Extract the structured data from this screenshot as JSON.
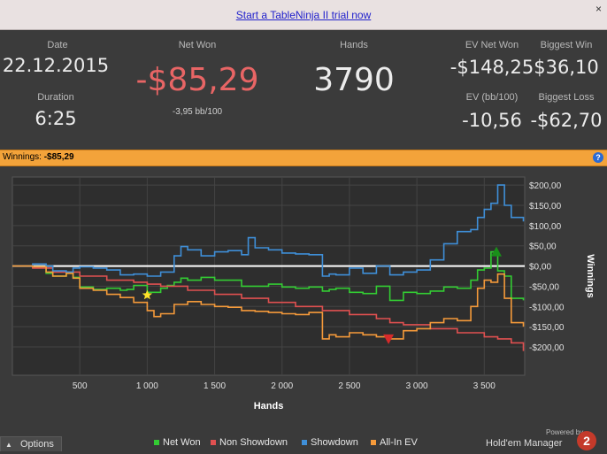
{
  "trial": {
    "link_text": "Start a TableNinja II trial now",
    "close_glyph": "×"
  },
  "stats": {
    "date_label": "Date",
    "date_value": "22.12.2015",
    "duration_label": "Duration",
    "duration_value": "6:25",
    "net_won_label": "Net Won",
    "net_won_value": "-$85,29",
    "net_won_sub": "-3,95 bb/100",
    "hands_label": "Hands",
    "hands_value": "3790",
    "ev_net_won_label": "EV Net Won",
    "ev_net_won_value": "-$148,25",
    "ev_bb_label": "EV (bb/100)",
    "ev_bb_value": "-10,56",
    "biggest_win_label": "Biggest Win",
    "biggest_win_value": "$36,10",
    "biggest_loss_label": "Biggest Loss",
    "biggest_loss_value": "-$62,70"
  },
  "winbar": {
    "label": "Winnings:",
    "value": "-$85,29",
    "help_glyph": "?"
  },
  "colors": {
    "net_won": "#33cc33",
    "non_showdown": "#e05050",
    "showdown": "#3f8fd8",
    "all_in_ev": "#f59a3a",
    "negative": "#e86565"
  },
  "chart_data": {
    "type": "line",
    "xlabel": "Hands",
    "ylabel": "Winnings",
    "xlim": [
      0,
      3800
    ],
    "ylim": [
      -270,
      220
    ],
    "x_ticks": [
      500,
      1000,
      1500,
      2000,
      2500,
      3000,
      3500
    ],
    "x_tick_labels": [
      "500",
      "1 000",
      "1 500",
      "2 000",
      "2 500",
      "3 000",
      "3 500"
    ],
    "y_ticks": [
      200,
      150,
      100,
      50,
      0,
      -50,
      -100,
      -150,
      -200
    ],
    "y_tick_labels": [
      "$200,00",
      "$150,00",
      "$100,00",
      "$50,00",
      "$0,00",
      "-$50,00",
      "-$100,00",
      "-$150,00",
      "-$200,00"
    ],
    "legend_position": "bottom",
    "series": [
      {
        "name": "Net Won",
        "color": "#33cc33",
        "x": [
          0,
          150,
          250,
          300,
          400,
          450,
          500,
          600,
          700,
          800,
          850,
          900,
          1000,
          1100,
          1150,
          1200,
          1250,
          1300,
          1400,
          1500,
          1600,
          1700,
          1800,
          1900,
          2000,
          2100,
          2200,
          2300,
          2350,
          2400,
          2500,
          2600,
          2700,
          2800,
          2900,
          3000,
          3100,
          3200,
          3300,
          3400,
          3450,
          3500,
          3550,
          3600,
          3650,
          3700,
          3790
        ],
        "values": [
          0,
          -2,
          -18,
          -25,
          -18,
          -28,
          -52,
          -58,
          -55,
          -60,
          -58,
          -48,
          -65,
          -55,
          -48,
          -40,
          -30,
          -35,
          -28,
          -35,
          -35,
          -50,
          -50,
          -45,
          -52,
          -55,
          -52,
          -62,
          -58,
          -55,
          -65,
          -68,
          -50,
          -85,
          -65,
          -68,
          -62,
          -52,
          -55,
          -35,
          -10,
          -5,
          35,
          -12,
          -25,
          -80,
          -85
        ]
      },
      {
        "name": "Non Showdown",
        "color": "#e05050",
        "x": [
          0,
          150,
          300,
          500,
          700,
          900,
          1000,
          1100,
          1300,
          1500,
          1700,
          1900,
          2100,
          2300,
          2500,
          2700,
          2800,
          2900,
          3100,
          3300,
          3500,
          3600,
          3700,
          3790
        ],
        "values": [
          0,
          -5,
          -15,
          -25,
          -35,
          -40,
          -45,
          -50,
          -60,
          -70,
          -80,
          -90,
          -100,
          -110,
          -120,
          -130,
          -140,
          -145,
          -155,
          -165,
          -175,
          -180,
          -190,
          -210
        ]
      },
      {
        "name": "Showdown",
        "color": "#3f8fd8",
        "x": [
          0,
          150,
          250,
          300,
          400,
          450,
          500,
          600,
          700,
          800,
          900,
          1000,
          1100,
          1200,
          1250,
          1300,
          1400,
          1500,
          1600,
          1700,
          1750,
          1800,
          1900,
          2000,
          2100,
          2200,
          2300,
          2350,
          2400,
          2500,
          2600,
          2700,
          2800,
          2900,
          3000,
          3100,
          3200,
          3300,
          3400,
          3450,
          3500,
          3550,
          3600,
          3650,
          3700,
          3790
        ],
        "values": [
          0,
          5,
          0,
          -12,
          -15,
          -5,
          -2,
          -5,
          -10,
          -22,
          -20,
          -25,
          -15,
          25,
          48,
          40,
          25,
          35,
          38,
          28,
          70,
          45,
          40,
          32,
          30,
          28,
          -25,
          -20,
          -22,
          -5,
          -18,
          0,
          -22,
          -15,
          -10,
          15,
          55,
          85,
          90,
          120,
          140,
          155,
          200,
          150,
          120,
          110
        ]
      },
      {
        "name": "All-In EV",
        "color": "#f59a3a",
        "x": [
          0,
          150,
          250,
          300,
          400,
          450,
          500,
          600,
          700,
          800,
          900,
          1000,
          1050,
          1100,
          1200,
          1300,
          1400,
          1500,
          1600,
          1700,
          1800,
          1900,
          2000,
          2100,
          2200,
          2300,
          2350,
          2400,
          2500,
          2600,
          2700,
          2800,
          2900,
          3000,
          3100,
          3200,
          3300,
          3400,
          3450,
          3500,
          3550,
          3600,
          3650,
          3700,
          3790
        ],
        "values": [
          0,
          -2,
          -15,
          -25,
          -18,
          -30,
          -55,
          -60,
          -70,
          -78,
          -90,
          -110,
          -125,
          -118,
          -95,
          -88,
          -95,
          -100,
          -102,
          -110,
          -112,
          -115,
          -118,
          -120,
          -115,
          -180,
          -170,
          -175,
          -165,
          -170,
          -175,
          -180,
          -160,
          -155,
          -140,
          -130,
          -135,
          -100,
          -55,
          -35,
          -40,
          -20,
          -80,
          -140,
          -150
        ]
      }
    ],
    "markers": [
      {
        "name": "star",
        "x": 1000,
        "y": -72,
        "color": "#ffe22a"
      },
      {
        "name": "triangle-up",
        "x": 3590,
        "y": 35,
        "color": "#1a8f1a"
      },
      {
        "name": "triangle-down",
        "x": 2790,
        "y": -180,
        "color": "#d62a2a"
      }
    ]
  },
  "legend": {
    "items": [
      "Net Won",
      "Non Showdown",
      "Showdown",
      "All-In EV"
    ]
  },
  "footer": {
    "options_arrow": "▲",
    "options_label": "Options",
    "powered_by": "Powered by",
    "brand": "Hold'em Manager",
    "brand_logo": "2"
  }
}
